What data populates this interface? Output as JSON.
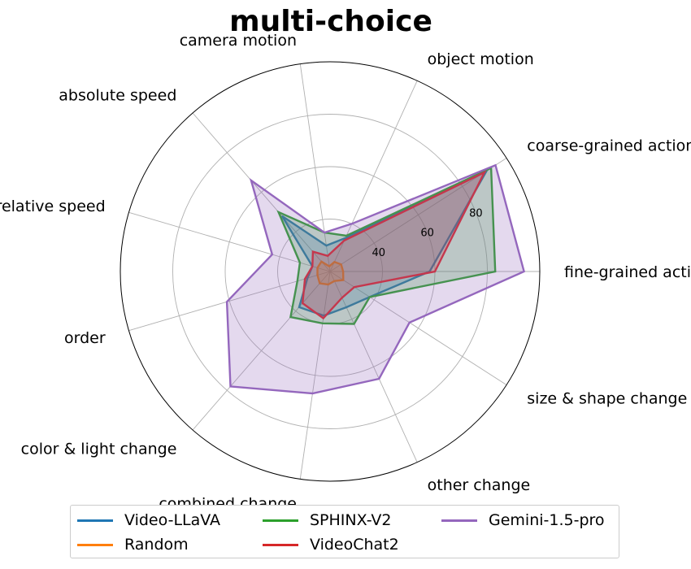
{
  "chart_data": {
    "type": "radar",
    "title": "multi-choice",
    "axes": [
      "fine-grained action",
      "coarse-grained action",
      "object motion",
      "camera motion",
      "absolute speed",
      "relative speed",
      "order",
      "color & light change",
      "combined change",
      "other change",
      "size & shape change"
    ],
    "rgrid": [
      40,
      60,
      80
    ],
    "rlim": [
      20,
      100
    ],
    "grid": true,
    "legend_position": "bottom",
    "series": [
      {
        "name": "Video-LLaVA",
        "color": "#1f77b4",
        "values": [
          58,
          91,
          34,
          30,
          48,
          27,
          29,
          38,
          37,
          35,
          38
        ]
      },
      {
        "name": "Random",
        "color": "#ff7f0e",
        "values": [
          25,
          25,
          24,
          22,
          25,
          25,
          25,
          26,
          25,
          24,
          26
        ]
      },
      {
        "name": "SPHINX-V2",
        "color": "#2ca02c",
        "values": [
          83,
          93,
          35,
          35,
          50,
          32,
          33,
          43,
          40,
          42,
          38
        ]
      },
      {
        "name": "VideoChat2",
        "color": "#d62728",
        "values": [
          60,
          90,
          33,
          26,
          30,
          27,
          30,
          36,
          38,
          31,
          31
        ]
      },
      {
        "name": "Gemini-1.5-pro",
        "color": "#9467bd",
        "fill": true,
        "values": [
          94,
          95,
          40,
          35,
          66,
          43,
          61,
          78,
          67,
          65,
          56
        ]
      }
    ]
  }
}
